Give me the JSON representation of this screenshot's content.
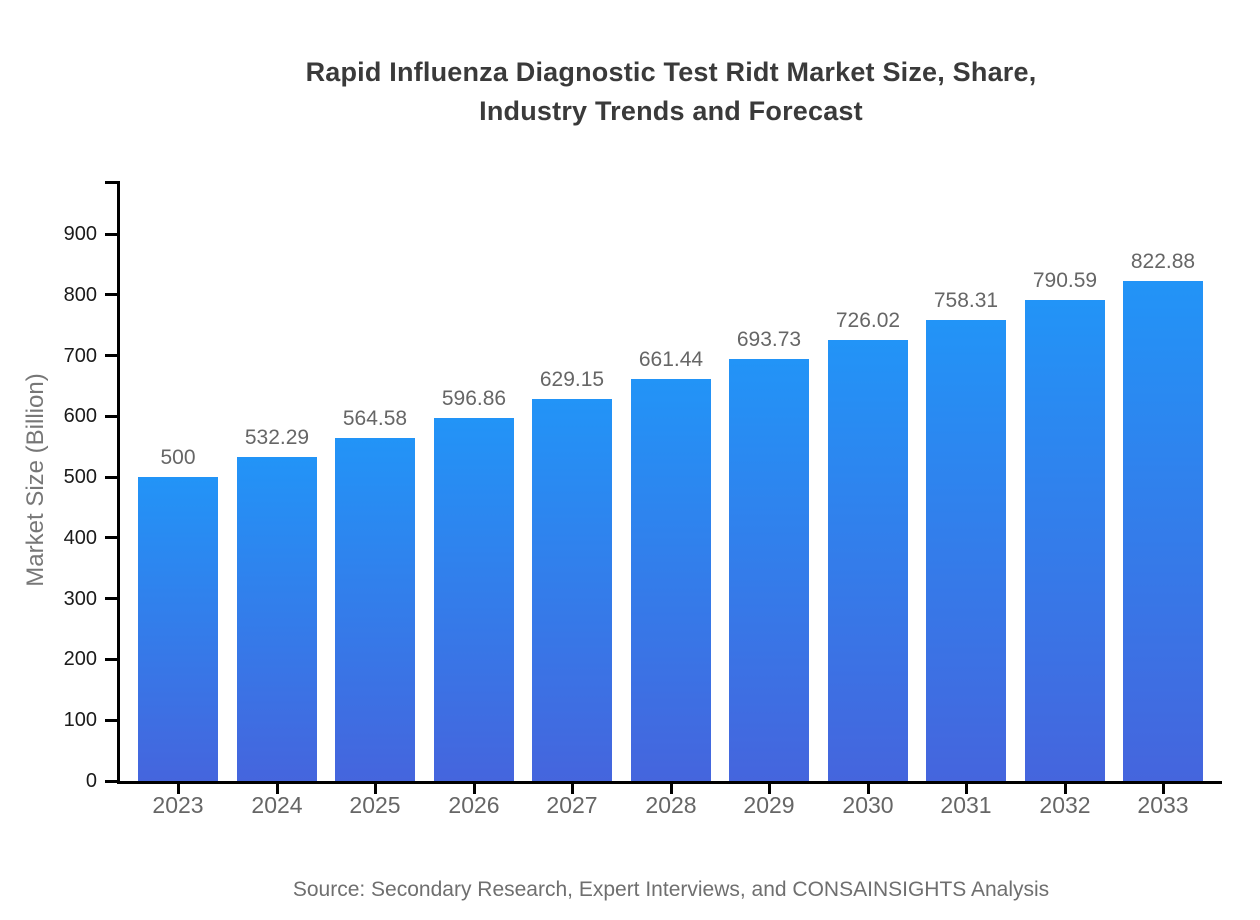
{
  "chart_data": {
    "type": "bar",
    "title": "Rapid Influenza Diagnostic Test Ridt Market Size, Share, Industry Trends and Forecast",
    "title_lines": [
      "Rapid Influenza Diagnostic Test Ridt Market Size, Share,",
      "Industry Trends and Forecast"
    ],
    "categories": [
      "2023",
      "2024",
      "2025",
      "2026",
      "2027",
      "2028",
      "2029",
      "2030",
      "2031",
      "2032",
      "2033"
    ],
    "values": [
      500,
      532.29,
      564.58,
      596.86,
      629.15,
      661.44,
      693.73,
      726.02,
      758.31,
      790.59,
      822.88
    ],
    "xlabel": "",
    "ylabel": "Market Size (Billion)",
    "yticks": [
      0,
      100,
      200,
      300,
      400,
      500,
      600,
      700,
      800,
      900
    ],
    "ylim": [
      0,
      987
    ],
    "grid": false,
    "legend": "none",
    "source": "Source: Secondary Research, Expert Interviews, and CONSAINSIGHTS Analysis",
    "colors": {
      "bar_gradient_top": "#2294f7",
      "bar_gradient_bottom": "#4565dd",
      "axis": "#000000",
      "title_text": "#3a3a3a",
      "y_tick_text": "#1a1a1a",
      "muted_text": "#666666"
    }
  }
}
